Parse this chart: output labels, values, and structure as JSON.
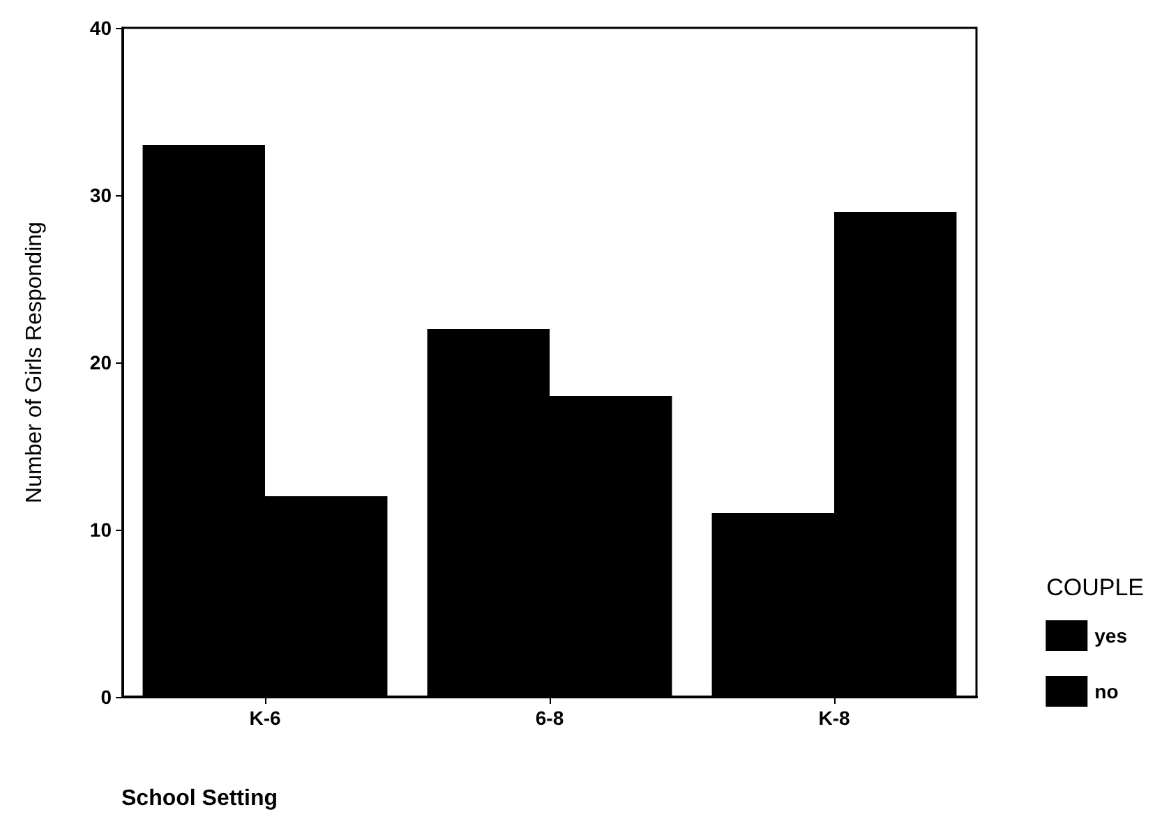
{
  "chart_data": {
    "type": "bar",
    "xlabel": "School Setting",
    "ylabel": "Number of Girls Responding",
    "legend_title": "COUPLE",
    "categories": [
      "K-6",
      "6-8",
      "K-8"
    ],
    "series": [
      {
        "name": "yes",
        "color": "#000000",
        "values": [
          33,
          22,
          11
        ]
      },
      {
        "name": "no",
        "color": "#000000",
        "values": [
          12,
          18,
          29
        ]
      }
    ],
    "ylim": [
      0,
      40
    ],
    "yticks": [
      0,
      10,
      20,
      30,
      40
    ],
    "grid": false,
    "legend": "right"
  }
}
